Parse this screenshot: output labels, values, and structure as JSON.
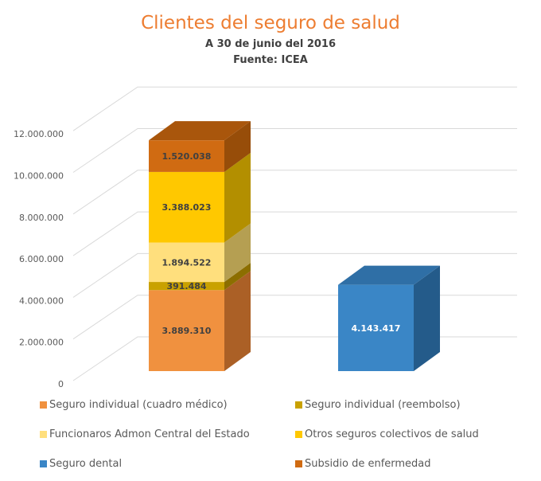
{
  "chart_data": {
    "type": "bar",
    "subtype": "3d-stacked-column",
    "title": "Clientes del seguro de salud",
    "subtitle": "A 30 de junio del 2016",
    "source": "Fuente: ICEA",
    "ylim": [
      0,
      12000000
    ],
    "yticks": [
      "0",
      "2.000.000",
      "4.000.000",
      "6.000.000",
      "8.000.000",
      "10.000.000",
      "12.000.000"
    ],
    "ytick_values": [
      0,
      2000000,
      4000000,
      6000000,
      8000000,
      10000000,
      12000000
    ],
    "grid": true,
    "legend_position": "bottom",
    "series": [
      {
        "name": "Seguro individual (cuadro médico)",
        "color": "#f0913f",
        "side": "#ab6026",
        "top": "#c96f28",
        "values": [
          3889310,
          null
        ],
        "labels": [
          "3.889.310",
          ""
        ]
      },
      {
        "name": "Seguro individual (reembolso)",
        "color": "#c9a100",
        "side": "#8c6e00",
        "top": "#a68400",
        "values": [
          391484,
          null
        ],
        "labels": [
          "391.484",
          ""
        ]
      },
      {
        "name": "Funcionaros Admon Central del Estado",
        "color": "#ffdf7d",
        "side": "#b59f52",
        "top": "#d9bd63",
        "values": [
          1894522,
          null
        ],
        "labels": [
          "1.894.522",
          ""
        ]
      },
      {
        "name": "Otros seguros colectivos de salud",
        "color": "#ffc800",
        "side": "#b38f00",
        "top": "#d9a900",
        "values": [
          3388023,
          null
        ],
        "labels": [
          "3.388.023",
          ""
        ]
      },
      {
        "name": "Seguro dental",
        "color": "#3a86c6",
        "side": "#245b8a",
        "top": "#2f6fa6",
        "values": [
          null,
          4143417
        ],
        "labels": [
          "",
          "4.143.417"
        ]
      },
      {
        "name": "Subsidio de enfermedad",
        "color": "#d06b12",
        "side": "#974d09",
        "top": "#a9560c",
        "values": [
          1520038,
          null
        ],
        "labels": [
          "1.520.038",
          ""
        ]
      }
    ]
  }
}
